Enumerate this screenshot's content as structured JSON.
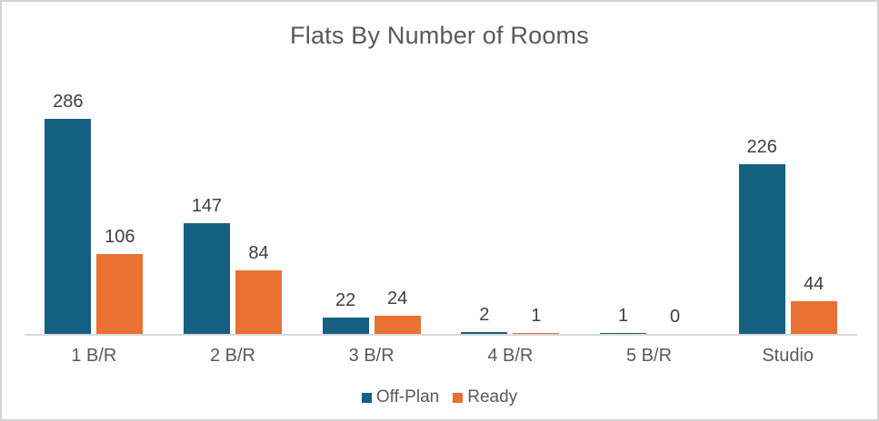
{
  "chart_data": {
    "type": "bar",
    "title": "Flats By Number of Rooms",
    "categories": [
      "1 B/R",
      "2 B/R",
      "3 B/R",
      "4 B/R",
      "5 B/R",
      "Studio"
    ],
    "series": [
      {
        "name": "Off-Plan",
        "color": "#156082",
        "values": [
          286,
          147,
          22,
          2,
          1,
          226
        ]
      },
      {
        "name": "Ready",
        "color": "#E97132",
        "values": [
          106,
          84,
          24,
          1,
          0,
          44
        ]
      }
    ],
    "xlabel": "",
    "ylabel": "",
    "ylim": [
      0,
      286
    ],
    "grid": false,
    "legend_position": "bottom",
    "value_labels_shown": true,
    "axis_line_color": "#d9d9d9",
    "frame_border_color": "#d3d3d3",
    "title_color": "#595959",
    "value_label_color": "#404040",
    "category_label_color": "#595959"
  }
}
